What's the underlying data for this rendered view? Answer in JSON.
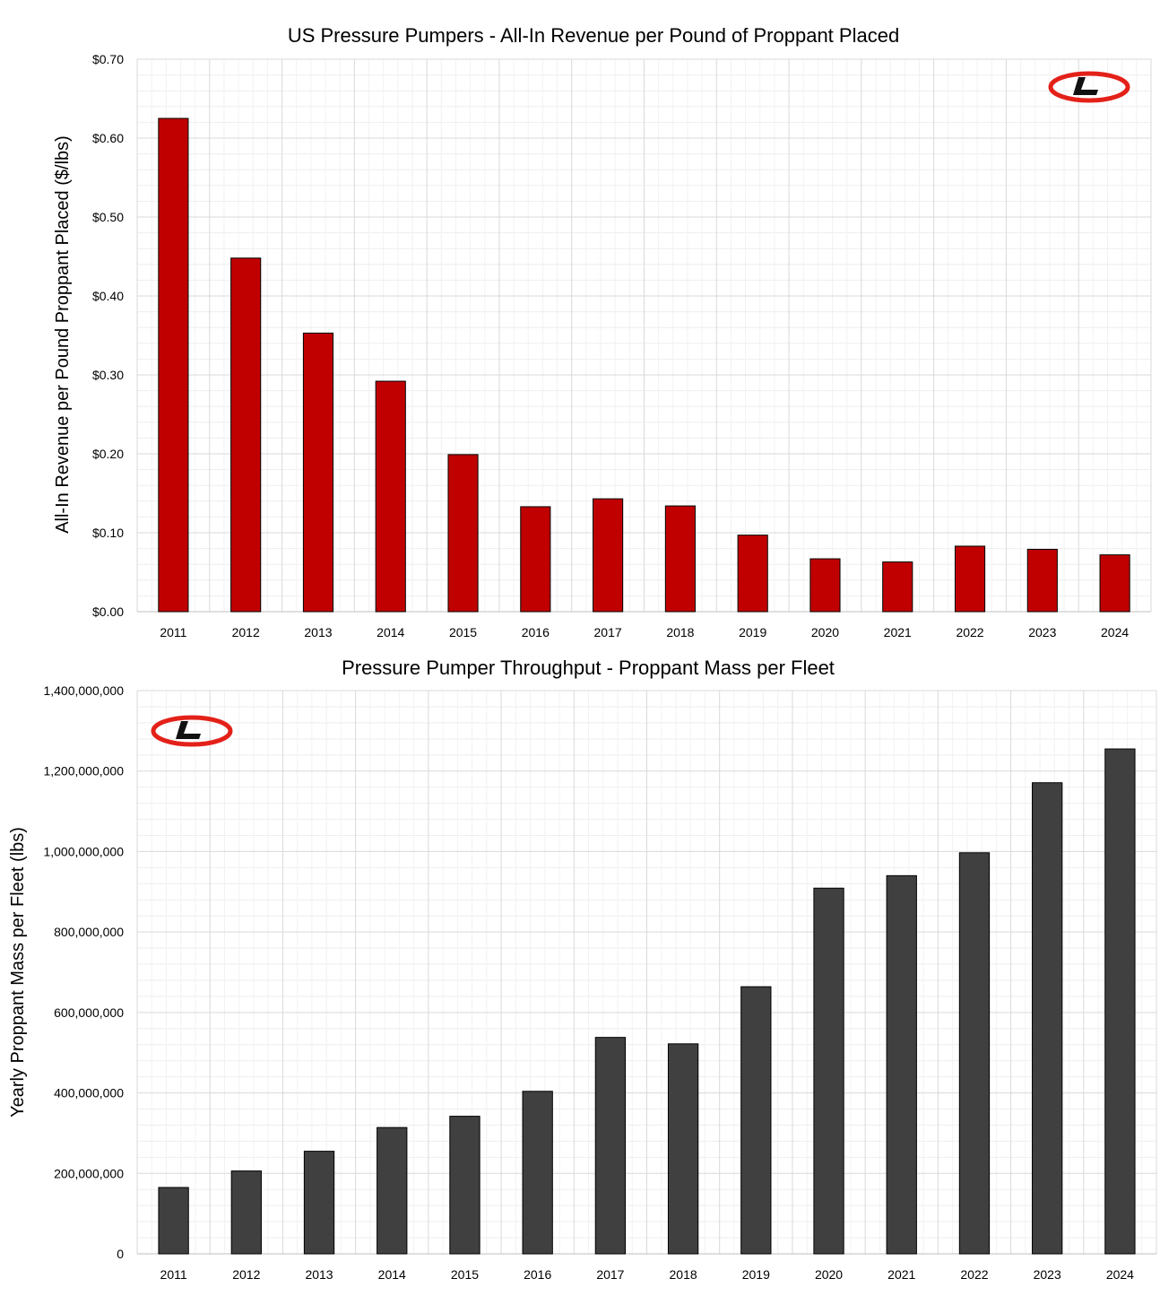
{
  "chart_data": [
    {
      "type": "bar",
      "title": "US Pressure Pumpers - All-In Revenue per Pound of Proppant Placed",
      "xlabel": "",
      "ylabel": "All-In Revenue per Pound Proppant Placed ($/lbs)",
      "categories": [
        "2011",
        "2012",
        "2013",
        "2014",
        "2015",
        "2016",
        "2017",
        "2018",
        "2019",
        "2020",
        "2021",
        "2022",
        "2023",
        "2024"
      ],
      "values": [
        0.625,
        0.448,
        0.353,
        0.292,
        0.199,
        0.133,
        0.143,
        0.134,
        0.097,
        0.067,
        0.063,
        0.083,
        0.079,
        0.072
      ],
      "ylim": [
        0,
        0.7
      ],
      "yticks": [
        0,
        0.1,
        0.2,
        0.3,
        0.4,
        0.5,
        0.6,
        0.7
      ],
      "ytick_labels": [
        "$0.00",
        "$0.10",
        "$0.20",
        "$0.30",
        "$0.40",
        "$0.50",
        "$0.60",
        "$0.70"
      ],
      "bar_color": "#c00000",
      "grid": true,
      "logo": "company-logo-red-ellipse-L",
      "logo_placement": "top-right"
    },
    {
      "type": "bar",
      "title": "Pressure Pumper Throughput - Proppant Mass per Fleet",
      "xlabel": "",
      "ylabel": "Yearly Proppant Mass per Fleet (lbs)",
      "categories": [
        "2011",
        "2012",
        "2013",
        "2014",
        "2015",
        "2016",
        "2017",
        "2018",
        "2019",
        "2020",
        "2021",
        "2022",
        "2023",
        "2024"
      ],
      "values": [
        165000000,
        206000000,
        255000000,
        314000000,
        342000000,
        404000000,
        538000000,
        522000000,
        664000000,
        909000000,
        940000000,
        997000000,
        1171000000,
        1255000000
      ],
      "ylim": [
        0,
        1400000000
      ],
      "yticks": [
        0,
        200000000,
        400000000,
        600000000,
        800000000,
        1000000000,
        1200000000,
        1400000000
      ],
      "ytick_labels": [
        "0",
        "200,000,000",
        "400,000,000",
        "600,000,000",
        "800,000,000",
        "1,000,000,000",
        "1,200,000,000",
        "1,400,000,000"
      ],
      "bar_color": "#404040",
      "grid": true,
      "logo": "company-logo-red-ellipse-L",
      "logo_placement": "top-left"
    }
  ]
}
